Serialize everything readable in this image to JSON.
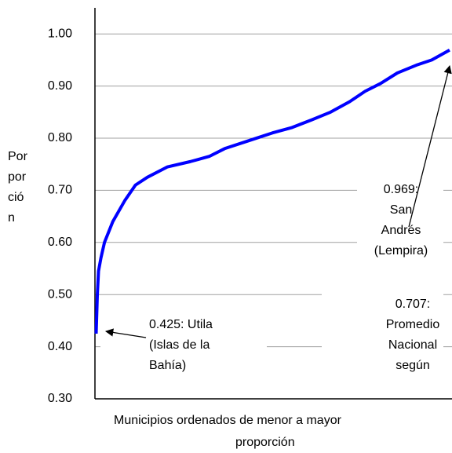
{
  "chart_data": {
    "type": "line",
    "y_label_lines": [
      "Por",
      "por",
      "ció",
      "n"
    ],
    "x_label_lines": [
      "Municipios ordenados de menor a mayor",
      "proporción"
    ],
    "x": [
      1,
      2,
      3,
      5,
      8,
      15,
      25,
      34,
      44,
      61,
      80,
      96,
      109,
      129,
      149,
      165,
      182,
      198,
      214,
      227,
      240,
      254,
      270,
      283,
      298
    ],
    "series": [
      {
        "color": "#0000ff",
        "values": [
          0.425,
          0.5,
          0.545,
          0.57,
          0.6,
          0.64,
          0.68,
          0.71,
          0.725,
          0.745,
          0.755,
          0.765,
          0.78,
          0.795,
          0.81,
          0.82,
          0.835,
          0.85,
          0.87,
          0.89,
          0.905,
          0.925,
          0.94,
          0.95,
          0.969
        ]
      }
    ],
    "xlim": [
      0,
      300
    ],
    "ylim": [
      0.3,
      1.05
    ],
    "yticks": [
      {
        "value": 0.3,
        "label": "0.30"
      },
      {
        "value": 0.4,
        "label": "0.40"
      },
      {
        "value": 0.5,
        "label": "0.50"
      },
      {
        "value": 0.6,
        "label": "0.60"
      },
      {
        "value": 0.7,
        "label": "0.70"
      },
      {
        "value": 0.8,
        "label": "0.80"
      },
      {
        "value": 0.9,
        "label": "0.90"
      },
      {
        "value": 1.0,
        "label": "1.00"
      }
    ],
    "grid": true,
    "annotations": [
      {
        "lines": [
          "0.425: Utila",
          "(Islas de la",
          "Bahía)"
        ]
      },
      {
        "lines": [
          "0.969:",
          "San",
          "Andrés",
          "(Lempira)"
        ]
      },
      {
        "lines": [
          "0.707:",
          "Promedio",
          "Nacional",
          "según"
        ]
      }
    ]
  }
}
